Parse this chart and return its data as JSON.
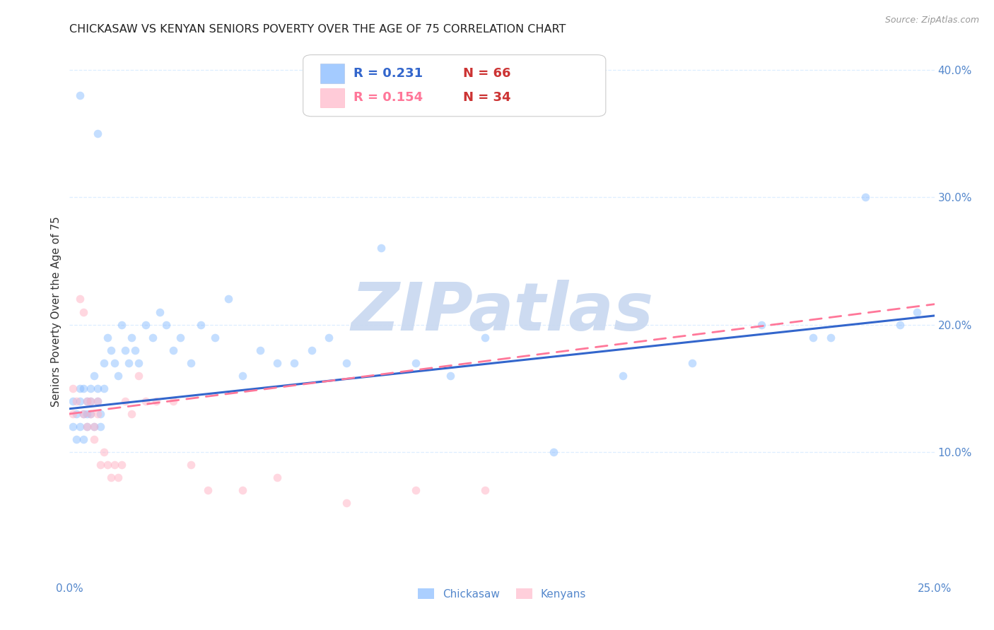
{
  "title": "CHICKASAW VS KENYAN SENIORS POVERTY OVER THE AGE OF 75 CORRELATION CHART",
  "source": "Source: ZipAtlas.com",
  "ylabel": "Seniors Poverty Over the Age of 75",
  "xlim": [
    0.0,
    0.25
  ],
  "ylim": [
    0.0,
    0.42
  ],
  "xticks": [
    0.0,
    0.05,
    0.1,
    0.15,
    0.2,
    0.25
  ],
  "xtick_labels": [
    "0.0%",
    "",
    "",
    "",
    "",
    "25.0%"
  ],
  "ytick_labels_right": [
    "10.0%",
    "20.0%",
    "30.0%",
    "40.0%"
  ],
  "yticks_right": [
    0.1,
    0.2,
    0.3,
    0.4
  ],
  "blue_color": "#7EB6FF",
  "pink_color": "#FFB6C8",
  "blue_line_color": "#3366CC",
  "pink_line_color": "#FF7799",
  "axis_color": "#5588CC",
  "grid_color": "#DDEEFF",
  "watermark_text": "ZIPatlas",
  "watermark_color": "#C8D8F0",
  "legend_blue_R": "R = 0.231",
  "legend_blue_N": "N = 66",
  "legend_pink_R": "R = 0.154",
  "legend_pink_N": "N = 34",
  "chickasaw_x": [
    0.001,
    0.001,
    0.002,
    0.002,
    0.003,
    0.003,
    0.003,
    0.004,
    0.004,
    0.004,
    0.005,
    0.005,
    0.005,
    0.006,
    0.006,
    0.006,
    0.007,
    0.007,
    0.008,
    0.008,
    0.009,
    0.009,
    0.01,
    0.01,
    0.011,
    0.012,
    0.013,
    0.014,
    0.015,
    0.016,
    0.017,
    0.018,
    0.019,
    0.02,
    0.022,
    0.024,
    0.026,
    0.028,
    0.03,
    0.032,
    0.035,
    0.038,
    0.042,
    0.046,
    0.05,
    0.055,
    0.06,
    0.065,
    0.07,
    0.075,
    0.08,
    0.09,
    0.1,
    0.11,
    0.12,
    0.14,
    0.16,
    0.18,
    0.2,
    0.215,
    0.22,
    0.23,
    0.24,
    0.245,
    0.008,
    0.003
  ],
  "chickasaw_y": [
    0.14,
    0.12,
    0.13,
    0.11,
    0.15,
    0.12,
    0.14,
    0.13,
    0.11,
    0.15,
    0.14,
    0.12,
    0.13,
    0.15,
    0.13,
    0.14,
    0.16,
    0.12,
    0.15,
    0.14,
    0.13,
    0.12,
    0.17,
    0.15,
    0.19,
    0.18,
    0.17,
    0.16,
    0.2,
    0.18,
    0.17,
    0.19,
    0.18,
    0.17,
    0.2,
    0.19,
    0.21,
    0.2,
    0.18,
    0.19,
    0.17,
    0.2,
    0.19,
    0.22,
    0.16,
    0.18,
    0.17,
    0.17,
    0.18,
    0.19,
    0.17,
    0.26,
    0.17,
    0.16,
    0.19,
    0.1,
    0.16,
    0.17,
    0.2,
    0.19,
    0.19,
    0.3,
    0.2,
    0.21,
    0.35,
    0.38
  ],
  "kenyan_x": [
    0.001,
    0.001,
    0.002,
    0.003,
    0.004,
    0.004,
    0.005,
    0.005,
    0.006,
    0.006,
    0.007,
    0.007,
    0.008,
    0.008,
    0.009,
    0.01,
    0.011,
    0.012,
    0.013,
    0.014,
    0.015,
    0.016,
    0.018,
    0.02,
    0.022,
    0.025,
    0.03,
    0.035,
    0.04,
    0.05,
    0.06,
    0.08,
    0.1,
    0.12
  ],
  "kenyan_y": [
    0.15,
    0.13,
    0.14,
    0.22,
    0.21,
    0.13,
    0.14,
    0.12,
    0.14,
    0.13,
    0.12,
    0.11,
    0.14,
    0.13,
    0.09,
    0.1,
    0.09,
    0.08,
    0.09,
    0.08,
    0.09,
    0.14,
    0.13,
    0.16,
    0.14,
    0.14,
    0.14,
    0.09,
    0.07,
    0.07,
    0.08,
    0.06,
    0.07,
    0.07
  ],
  "blue_trend_x": [
    0.0,
    0.25
  ],
  "blue_trend_y": [
    0.134,
    0.207
  ],
  "pink_trend_x": [
    0.0,
    0.25
  ],
  "pink_trend_y": [
    0.13,
    0.216
  ],
  "background_color": "#FFFFFF",
  "title_fontsize": 11.5,
  "axis_label_fontsize": 11,
  "tick_fontsize": 11,
  "marker_size": 70,
  "marker_alpha": 0.45
}
